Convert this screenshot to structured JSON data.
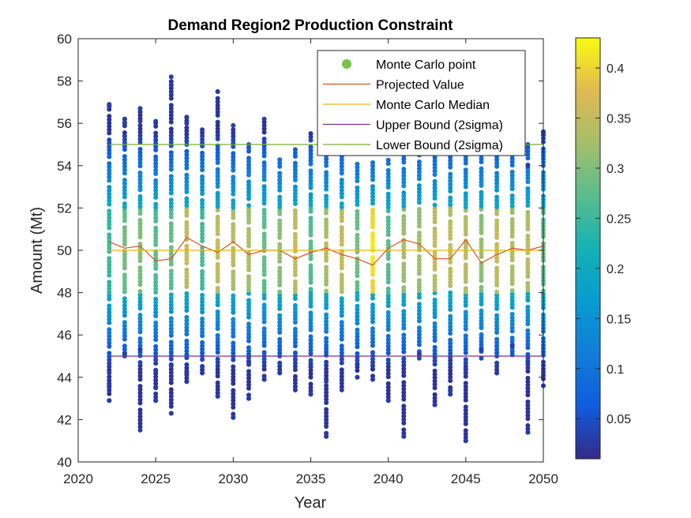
{
  "chart_data": {
    "type": "scatter",
    "title": "Demand Region2 Production Constraint",
    "xlabel": "Year",
    "ylabel": "Amount (Mt)",
    "xlim": [
      2020,
      2050
    ],
    "ylim": [
      40,
      60
    ],
    "xticks": [
      2020,
      2025,
      2030,
      2035,
      2040,
      2045,
      2050
    ],
    "yticks": [
      40,
      42,
      44,
      46,
      48,
      50,
      52,
      54,
      56,
      58,
      60
    ],
    "grid": false,
    "legend_position": "top-right",
    "colormap": "parula",
    "colorbar": {
      "range": [
        0.01,
        0.43
      ],
      "ticks": [
        0.05,
        0.1,
        0.15,
        0.2,
        0.25,
        0.3,
        0.35,
        0.4
      ],
      "tick_labels": [
        "0.05",
        "0.1",
        "0.15",
        "0.2",
        "0.25",
        "0.3",
        "0.35",
        "0.4"
      ]
    },
    "years": [
      2022,
      2023,
      2024,
      2025,
      2026,
      2027,
      2028,
      2029,
      2030,
      2031,
      2032,
      2033,
      2034,
      2035,
      2036,
      2037,
      2038,
      2039,
      2040,
      2041,
      2042,
      2043,
      2044,
      2045,
      2046,
      2047,
      2048,
      2049,
      2050
    ],
    "series": [
      {
        "name": "Monte Carlo point",
        "kind": "scatter",
        "color": "#77c44a",
        "description_years": "Monte Carlo samples per year, colored by density",
        "per_year": [
          {
            "x": 2022,
            "min": 42.9,
            "max": 56.9,
            "core": [
              48.0,
              52.0
            ],
            "peak": 0.26,
            "outliers": [
              42.9,
              43.6,
              44.2,
              56.8,
              56.9
            ]
          },
          {
            "x": 2023,
            "min": 45.0,
            "max": 56.2,
            "core": [
              48.0,
              52.0
            ],
            "peak": 0.3,
            "outliers": [
              45.1,
              56.0,
              56.2
            ]
          },
          {
            "x": 2024,
            "min": 41.5,
            "max": 56.7,
            "core": [
              48.0,
              52.0
            ],
            "peak": 0.31,
            "outliers": [
              41.5,
              45.3,
              56.1,
              56.7
            ]
          },
          {
            "x": 2025,
            "min": 42.9,
            "max": 56.1,
            "core": [
              48.0,
              52.0
            ],
            "peak": 0.28,
            "outliers": [
              42.9,
              43.5,
              44.3,
              56.1
            ]
          },
          {
            "x": 2026,
            "min": 42.3,
            "max": 58.2,
            "core": [
              48.0,
              52.0
            ],
            "peak": 0.29,
            "outliers": [
              42.3,
              44.6,
              57.8,
              58.2
            ]
          },
          {
            "x": 2027,
            "min": 43.8,
            "max": 56.3,
            "core": [
              48.0,
              52.0
            ],
            "peak": 0.36,
            "outliers": [
              43.8,
              44.2,
              56.0,
              56.3
            ]
          },
          {
            "x": 2028,
            "min": 44.2,
            "max": 55.7,
            "core": [
              48.0,
              52.0
            ],
            "peak": 0.27,
            "outliers": [
              44.2,
              44.5,
              55.7
            ]
          },
          {
            "x": 2029,
            "min": 43.1,
            "max": 57.5,
            "core": [
              48.0,
              52.0
            ],
            "peak": 0.36,
            "outliers": [
              43.1,
              57.5
            ]
          },
          {
            "x": 2030,
            "min": 42.1,
            "max": 55.9,
            "core": [
              48.0,
              52.0
            ],
            "peak": 0.35,
            "outliers": [
              42.1,
              55.9
            ]
          },
          {
            "x": 2031,
            "min": 43.0,
            "max": 55.0,
            "core": [
              48.0,
              52.0
            ],
            "peak": 0.34,
            "outliers": [
              43.0,
              44.7
            ]
          },
          {
            "x": 2032,
            "min": 43.9,
            "max": 56.2,
            "core": [
              48.0,
              52.0
            ],
            "peak": 0.29,
            "outliers": [
              43.9,
              56.2
            ]
          },
          {
            "x": 2033,
            "min": 44.2,
            "max": 54.3,
            "core": [
              48.0,
              52.0
            ],
            "peak": 0.32,
            "outliers": [
              44.2
            ]
          },
          {
            "x": 2034,
            "min": 43.4,
            "max": 54.9,
            "core": [
              48.0,
              52.0
            ],
            "peak": 0.36,
            "outliers": [
              43.4
            ]
          },
          {
            "x": 2035,
            "min": 43.2,
            "max": 55.6,
            "core": [
              48.0,
              52.0
            ],
            "peak": 0.28,
            "outliers": [
              43.2,
              44.5
            ]
          },
          {
            "x": 2036,
            "min": 41.2,
            "max": 55.2,
            "core": [
              48.0,
              52.0
            ],
            "peak": 0.34,
            "outliers": [
              41.2,
              43.8
            ]
          },
          {
            "x": 2037,
            "min": 43.4,
            "max": 54.8,
            "core": [
              48.0,
              52.0
            ],
            "peak": 0.36,
            "outliers": [
              43.4
            ]
          },
          {
            "x": 2038,
            "min": 44.0,
            "max": 54.3,
            "core": [
              48.0,
              52.0
            ],
            "peak": 0.3,
            "outliers": [
              44.0,
              44.6
            ]
          },
          {
            "x": 2039,
            "min": 43.9,
            "max": 54.2,
            "core": [
              48.0,
              52.0
            ],
            "peak": 0.42,
            "outliers": [
              43.9
            ]
          },
          {
            "x": 2040,
            "min": 42.9,
            "max": 54.4,
            "core": [
              48.0,
              52.0
            ],
            "peak": 0.28,
            "outliers": [
              42.9
            ]
          },
          {
            "x": 2041,
            "min": 41.2,
            "max": 54.7,
            "core": [
              48.0,
              52.0
            ],
            "peak": 0.33,
            "outliers": [
              41.2
            ]
          },
          {
            "x": 2042,
            "min": 44.9,
            "max": 55.0,
            "core": [
              48.0,
              52.0
            ],
            "peak": 0.33,
            "outliers": [
              45.1
            ]
          },
          {
            "x": 2043,
            "min": 42.7,
            "max": 55.0,
            "core": [
              48.0,
              52.0
            ],
            "peak": 0.36,
            "outliers": [
              42.7
            ]
          },
          {
            "x": 2044,
            "min": 43.2,
            "max": 54.9,
            "core": [
              48.0,
              52.0
            ],
            "peak": 0.36,
            "outliers": [
              43.2,
              43.4,
              44.8
            ]
          },
          {
            "x": 2045,
            "min": 41.0,
            "max": 55.1,
            "core": [
              48.0,
              52.0
            ],
            "peak": 0.35,
            "outliers": [
              41.0,
              44.2,
              44.4
            ]
          },
          {
            "x": 2046,
            "min": 44.9,
            "max": 55.0,
            "core": [
              48.0,
              52.0
            ],
            "peak": 0.32,
            "outliers": [
              45.3
            ]
          },
          {
            "x": 2047,
            "min": 44.2,
            "max": 54.9,
            "core": [
              48.0,
              52.0
            ],
            "peak": 0.36,
            "outliers": [
              44.2
            ]
          },
          {
            "x": 2048,
            "min": 44.9,
            "max": 55.0,
            "core": [
              48.0,
              52.0
            ],
            "peak": 0.34,
            "outliers": [
              45.5
            ]
          },
          {
            "x": 2049,
            "min": 41.4,
            "max": 55.0,
            "core": [
              48.0,
              52.0
            ],
            "peak": 0.35,
            "outliers": [
              41.4,
              44.7,
              54.0
            ]
          },
          {
            "x": 2050,
            "min": 43.6,
            "max": 55.6,
            "core": [
              48.0,
              52.0
            ],
            "peak": 0.29,
            "outliers": [
              43.6,
              44.1,
              55.5,
              55.6
            ]
          }
        ]
      },
      {
        "name": "Projected Value",
        "kind": "line",
        "color": "#d95319",
        "values": [
          50.4,
          50.1,
          50.2,
          49.5,
          49.6,
          50.6,
          50.2,
          49.9,
          50.4,
          49.8,
          50.0,
          50.0,
          49.6,
          49.9,
          50.1,
          49.8,
          49.6,
          49.3,
          50.1,
          50.5,
          50.3,
          49.6,
          49.6,
          50.5,
          49.4,
          49.8,
          50.1,
          50.0,
          50.2
        ]
      },
      {
        "name": "Monte Carlo Median",
        "kind": "line",
        "color": "#edb120",
        "values": [
          50.0,
          50.0,
          50.0,
          50.0,
          50.0,
          50.0,
          50.0,
          50.0,
          50.0,
          50.0,
          50.0,
          50.0,
          50.0,
          50.0,
          50.0,
          50.0,
          50.0,
          50.0,
          50.0,
          50.0,
          50.0,
          50.0,
          50.0,
          50.0,
          50.0,
          50.0,
          50.0,
          50.0,
          50.0
        ]
      },
      {
        "name": "Upper Bound (2sigma)",
        "kind": "line",
        "color": "#7e2f8e",
        "values": [
          45.0,
          45.0,
          45.0,
          45.0,
          45.0,
          45.0,
          45.0,
          45.0,
          45.0,
          45.0,
          45.0,
          45.0,
          45.0,
          45.0,
          45.0,
          45.0,
          45.0,
          45.0,
          45.0,
          45.0,
          45.0,
          45.0,
          45.0,
          45.0,
          45.0,
          45.0,
          45.0,
          45.0,
          45.0
        ]
      },
      {
        "name": "Lower Bound (2sigma)",
        "kind": "line",
        "color": "#77ac30",
        "values": [
          55.0,
          55.0,
          55.0,
          55.0,
          55.0,
          55.0,
          55.0,
          55.0,
          55.0,
          55.0,
          55.0,
          55.0,
          55.0,
          55.0,
          55.0,
          55.0,
          55.0,
          55.0,
          55.0,
          55.0,
          55.0,
          55.0,
          55.0,
          55.0,
          55.0,
          55.0,
          55.0,
          55.0,
          55.0
        ]
      }
    ]
  }
}
